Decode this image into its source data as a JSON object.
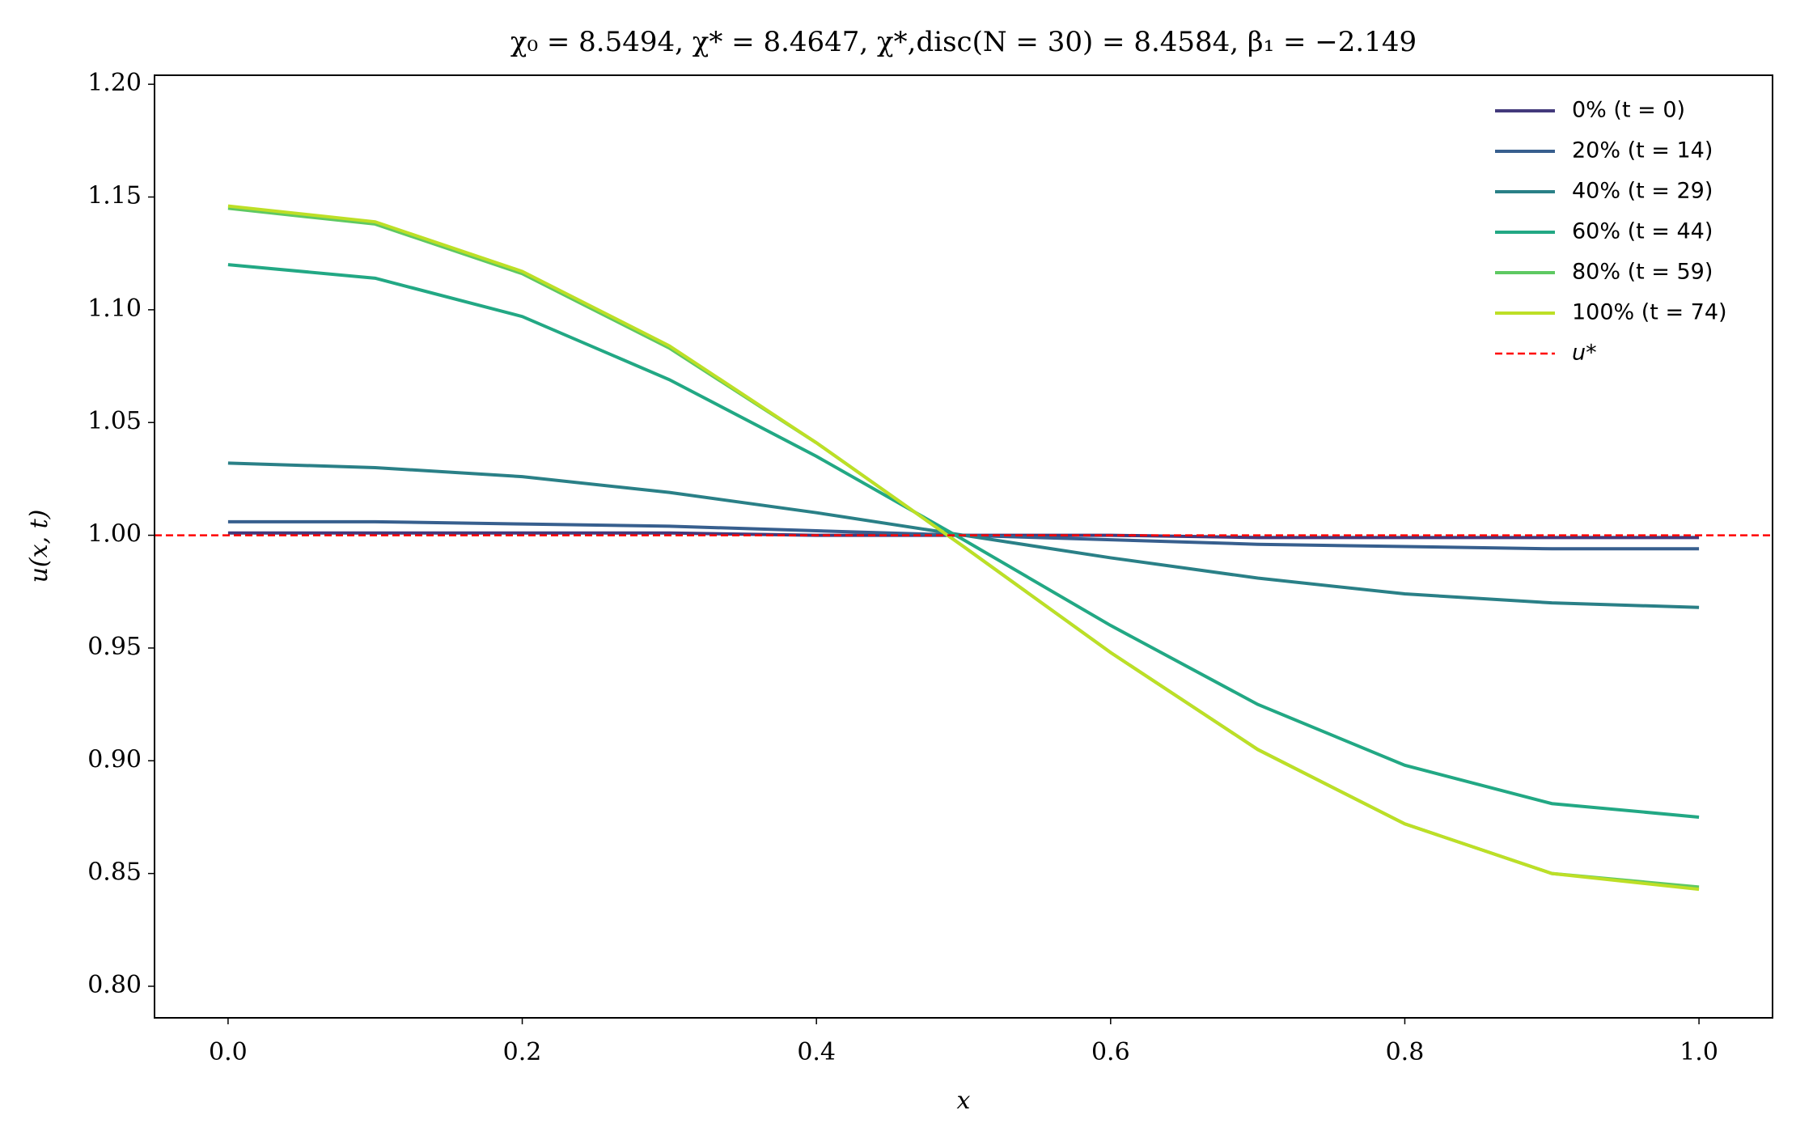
{
  "chart_data": {
    "type": "line",
    "title": "χ₀ = 8.5494,  χ* = 8.4647,  χ*,disc(N = 30) = 8.4584,  β₁ = −2.149",
    "xlabel": "x",
    "ylabel": "u(x, t)",
    "x": [
      0,
      0.1,
      0.2,
      0.3,
      0.4,
      0.5,
      0.6,
      0.7,
      0.8,
      0.9,
      1.0
    ],
    "series": [
      {
        "name": "0% (t = 0)",
        "color": "#433a7c",
        "values": [
          1.001,
          1.001,
          1.001,
          1.001,
          1.0,
          1.0,
          1.0,
          0.999,
          0.999,
          0.999,
          0.999
        ]
      },
      {
        "name": "20% (t = 14)",
        "color": "#375f8e",
        "values": [
          1.006,
          1.006,
          1.005,
          1.004,
          1.002,
          1.0,
          0.998,
          0.996,
          0.995,
          0.994,
          0.994
        ]
      },
      {
        "name": "40% (t = 29)",
        "color": "#2a8087",
        "values": [
          1.032,
          1.03,
          1.026,
          1.019,
          1.01,
          1.0,
          0.99,
          0.981,
          0.974,
          0.97,
          0.968
        ]
      },
      {
        "name": "60% (t = 44)",
        "color": "#22a884",
        "values": [
          1.12,
          1.114,
          1.097,
          1.069,
          1.035,
          0.998,
          0.96,
          0.925,
          0.898,
          0.881,
          0.875
        ]
      },
      {
        "name": "80% (t = 59)",
        "color": "#5ec962",
        "values": [
          1.145,
          1.138,
          1.116,
          1.083,
          1.041,
          0.995,
          0.948,
          0.905,
          0.872,
          0.85,
          0.844
        ]
      },
      {
        "name": "100% (t = 74)",
        "color": "#bddf26",
        "values": [
          1.146,
          1.139,
          1.117,
          1.084,
          1.041,
          0.995,
          0.948,
          0.905,
          0.872,
          0.85,
          0.843
        ]
      }
    ],
    "reference": {
      "name": "u*",
      "value": 1.0,
      "color": "#ff0000",
      "style": "dashed"
    },
    "xlim": [
      -0.05,
      1.05
    ],
    "ylim": [
      0.786,
      1.204
    ],
    "xticks": [
      {
        "value": 0,
        "label": "0.0"
      },
      {
        "value": 0.2,
        "label": "0.2"
      },
      {
        "value": 0.4,
        "label": "0.4"
      },
      {
        "value": 0.6,
        "label": "0.6"
      },
      {
        "value": 0.8,
        "label": "0.8"
      },
      {
        "value": 1,
        "label": "1.0"
      }
    ],
    "yticks": [
      {
        "value": 0.8,
        "label": "0.80"
      },
      {
        "value": 0.85,
        "label": "0.85"
      },
      {
        "value": 0.9,
        "label": "0.90"
      },
      {
        "value": 0.95,
        "label": "0.95"
      },
      {
        "value": 1,
        "label": "1.00"
      },
      {
        "value": 1.05,
        "label": "1.05"
      },
      {
        "value": 1.1,
        "label": "1.10"
      },
      {
        "value": 1.15,
        "label": "1.15"
      },
      {
        "value": 1.2,
        "label": "1.20"
      }
    ],
    "grid": false,
    "legend": "upper right"
  }
}
